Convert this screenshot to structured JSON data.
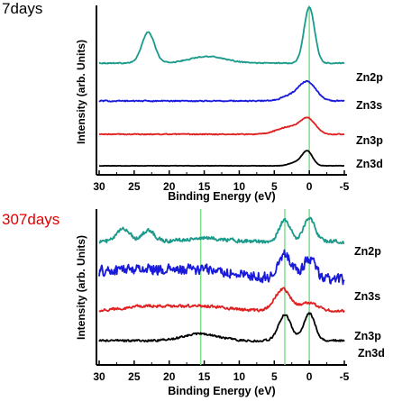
{
  "chart_data": [
    {
      "type": "line",
      "panel_label": "7days",
      "xlabel": "Binding Energy (eV)",
      "ylabel": "Intensity (arb. Units)",
      "xlim": [
        30,
        -5
      ],
      "x_ticks": [
        30,
        25,
        20,
        15,
        10,
        5,
        0,
        -5
      ],
      "vlines": [
        0
      ],
      "series": [
        {
          "name": "Zn2p",
          "color": "#1a9a8a",
          "peaks": [
            [
              23,
              0.55,
              0.9
            ],
            [
              14.5,
              0.12,
              2.5
            ],
            [
              0,
              1.0,
              0.75
            ]
          ],
          "baseline": 0.0,
          "slope": 0.0,
          "noise": 0.008
        },
        {
          "name": "Zn3s",
          "color": "#1a1adc",
          "peaks": [
            [
              0.2,
              0.42,
              1.2
            ],
            [
              2.5,
              0.12,
              1.4
            ]
          ],
          "baseline": 0.0,
          "slope": 0.0,
          "noise": 0.012
        },
        {
          "name": "Zn3p",
          "color": "#e02020",
          "peaks": [
            [
              0.2,
              0.38,
              1.1
            ],
            [
              3,
              0.18,
              1.6
            ]
          ],
          "baseline": 0.0,
          "slope": 0.0,
          "noise": 0.01
        },
        {
          "name": "Zn3d",
          "color": "#000000",
          "peaks": [
            [
              0.3,
              0.45,
              0.75
            ],
            [
              2,
              0.1,
              0.9
            ]
          ],
          "baseline": 0.0,
          "slope": 0.0,
          "noise": 0.004
        }
      ]
    },
    {
      "type": "line",
      "panel_label": "307days",
      "xlabel": "Binding Energy (eV)",
      "ylabel": "Intensity (arb. Units)",
      "xlim": [
        30,
        -5
      ],
      "x_ticks": [
        30,
        25,
        20,
        15,
        10,
        5,
        0,
        -5
      ],
      "vlines": [
        15.5,
        3.5,
        0
      ],
      "series": [
        {
          "name": "Zn2p",
          "color": "#1a9a8a",
          "peaks": [
            [
              26.5,
              0.12,
              0.9
            ],
            [
              23,
              0.1,
              0.9
            ],
            [
              3.5,
              0.2,
              0.8
            ],
            [
              0,
              0.22,
              0.8
            ],
            [
              15,
              0.03,
              3
            ]
          ],
          "baseline": 0.0,
          "slope": 0.0,
          "noise": 0.015
        },
        {
          "name": "Zn3s",
          "color": "#1a1adc",
          "peaks": [
            [
              3.5,
              0.22,
              0.9
            ],
            [
              0,
              0.18,
              0.9
            ],
            [
              15,
              0.05,
              4
            ],
            [
              24,
              0.04,
              3
            ]
          ],
          "baseline": 0.0,
          "slope": -0.002,
          "noise": 0.04
        },
        {
          "name": "Zn3p",
          "color": "#e02020",
          "peaks": [
            [
              3.8,
              0.22,
              1.1
            ],
            [
              0,
              0.08,
              1.2
            ],
            [
              16,
              0.05,
              4
            ],
            [
              24,
              0.04,
              3
            ]
          ],
          "baseline": 0.0,
          "slope": 0.0,
          "noise": 0.012
        },
        {
          "name": "Zn3d",
          "color": "#000000",
          "peaks": [
            [
              3.5,
              0.3,
              0.9
            ],
            [
              0,
              0.32,
              0.8
            ],
            [
              15.5,
              0.08,
              2.5
            ]
          ],
          "baseline": 0.0,
          "slope": 0.0,
          "noise": 0.01
        }
      ]
    }
  ]
}
